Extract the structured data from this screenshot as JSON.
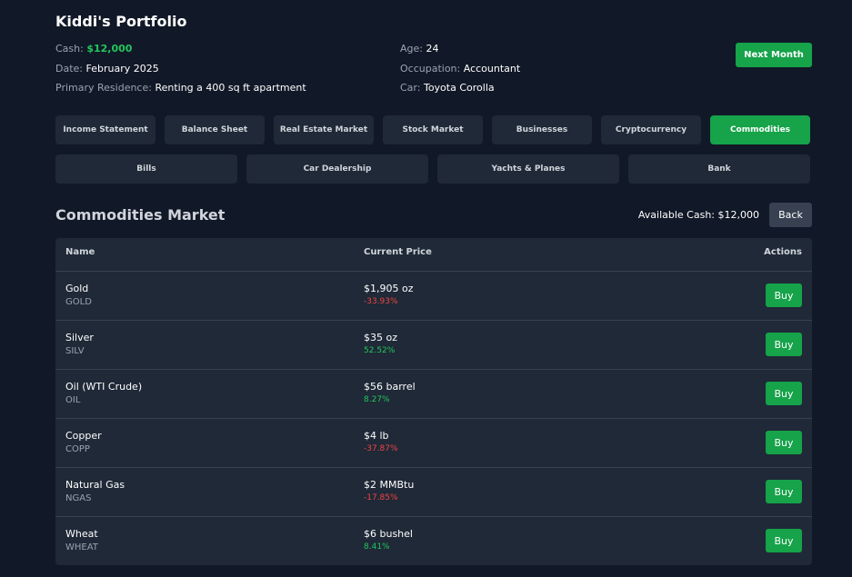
{
  "header": {
    "title": "Kiddi's Portfolio",
    "cash_label": "Cash:",
    "cash_value": "$12,000",
    "date_label": "Date:",
    "date_value": "February 2025",
    "residence_label": "Primary Residence:",
    "residence_value": "Renting a 400 sq ft apartment",
    "age_label": "Age:",
    "age_value": "24",
    "occupation_label": "Occupation:",
    "occupation_value": "Accountant",
    "car_label": "Car:",
    "car_value": "Toyota Corolla",
    "next_month_label": "Next Month"
  },
  "tabs_row1": [
    "Income Statement",
    "Balance Sheet",
    "Real Estate Market",
    "Stock Market",
    "Businesses",
    "Cryptocurrency",
    "Commodities"
  ],
  "tabs_row2": [
    "Bills",
    "Car Dealership",
    "Yachts & Planes",
    "Bank"
  ],
  "active_tab": "Commodities",
  "market": {
    "title": "Commodities Market",
    "available_cash": "Available Cash: $12,000",
    "back_label": "Back",
    "columns": [
      "Name",
      "Current Price",
      "Actions"
    ],
    "rows": [
      {
        "name": "Gold",
        "symbol": "GOLD",
        "price": "$1,905 oz",
        "change": "-33.93%",
        "direction": "down",
        "action": "Buy"
      },
      {
        "name": "Silver",
        "symbol": "SILV",
        "price": "$35 oz",
        "change": "52.52%",
        "direction": "up",
        "action": "Buy"
      },
      {
        "name": "Oil (WTI Crude)",
        "symbol": "OIL",
        "price": "$56 barrel",
        "change": "8.27%",
        "direction": "up",
        "action": "Buy"
      },
      {
        "name": "Copper",
        "symbol": "COPP",
        "price": "$4 lb",
        "change": "-37.87%",
        "direction": "down",
        "action": "Buy"
      },
      {
        "name": "Natural Gas",
        "symbol": "NGAS",
        "price": "$2 MMBtu",
        "change": "-17.85%",
        "direction": "down",
        "action": "Buy"
      },
      {
        "name": "Wheat",
        "symbol": "WHEAT",
        "price": "$6 bushel",
        "change": "8.41%",
        "direction": "up",
        "action": "Buy"
      }
    ]
  },
  "colors": {
    "background": "#111827",
    "panel": "#1f2937",
    "accent_green": "#16a34a",
    "positive": "#22c55e",
    "negative": "#ef4444"
  }
}
